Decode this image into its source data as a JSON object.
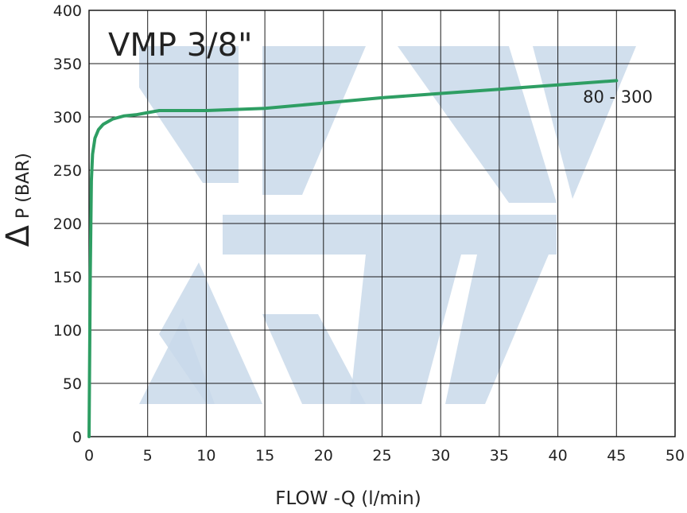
{
  "chart_data": {
    "type": "line",
    "title": "VMP 3/8\"",
    "xlabel": "FLOW -Q  (l/min)",
    "ylabel_symbol": "Δ",
    "ylabel": "P (BAR)",
    "xlim": [
      0,
      50
    ],
    "ylim": [
      0,
      400
    ],
    "x_ticks": [
      0,
      5,
      10,
      15,
      20,
      25,
      30,
      35,
      40,
      45,
      50
    ],
    "y_ticks": [
      0,
      50,
      100,
      150,
      200,
      250,
      300,
      350,
      400
    ],
    "grid": true,
    "series": [
      {
        "name": "80 - 300",
        "color": "#2e9e63",
        "x": [
          0,
          0.1,
          0.2,
          0.3,
          0.5,
          0.8,
          1.2,
          2,
          3,
          4,
          5,
          6,
          8,
          10,
          15,
          20,
          25,
          30,
          35,
          40,
          45
        ],
        "y": [
          0,
          150,
          240,
          265,
          280,
          288,
          293,
          298,
          301,
          302,
          304,
          306,
          306,
          306,
          308,
          313,
          318,
          322,
          326,
          330,
          334
        ]
      }
    ]
  }
}
